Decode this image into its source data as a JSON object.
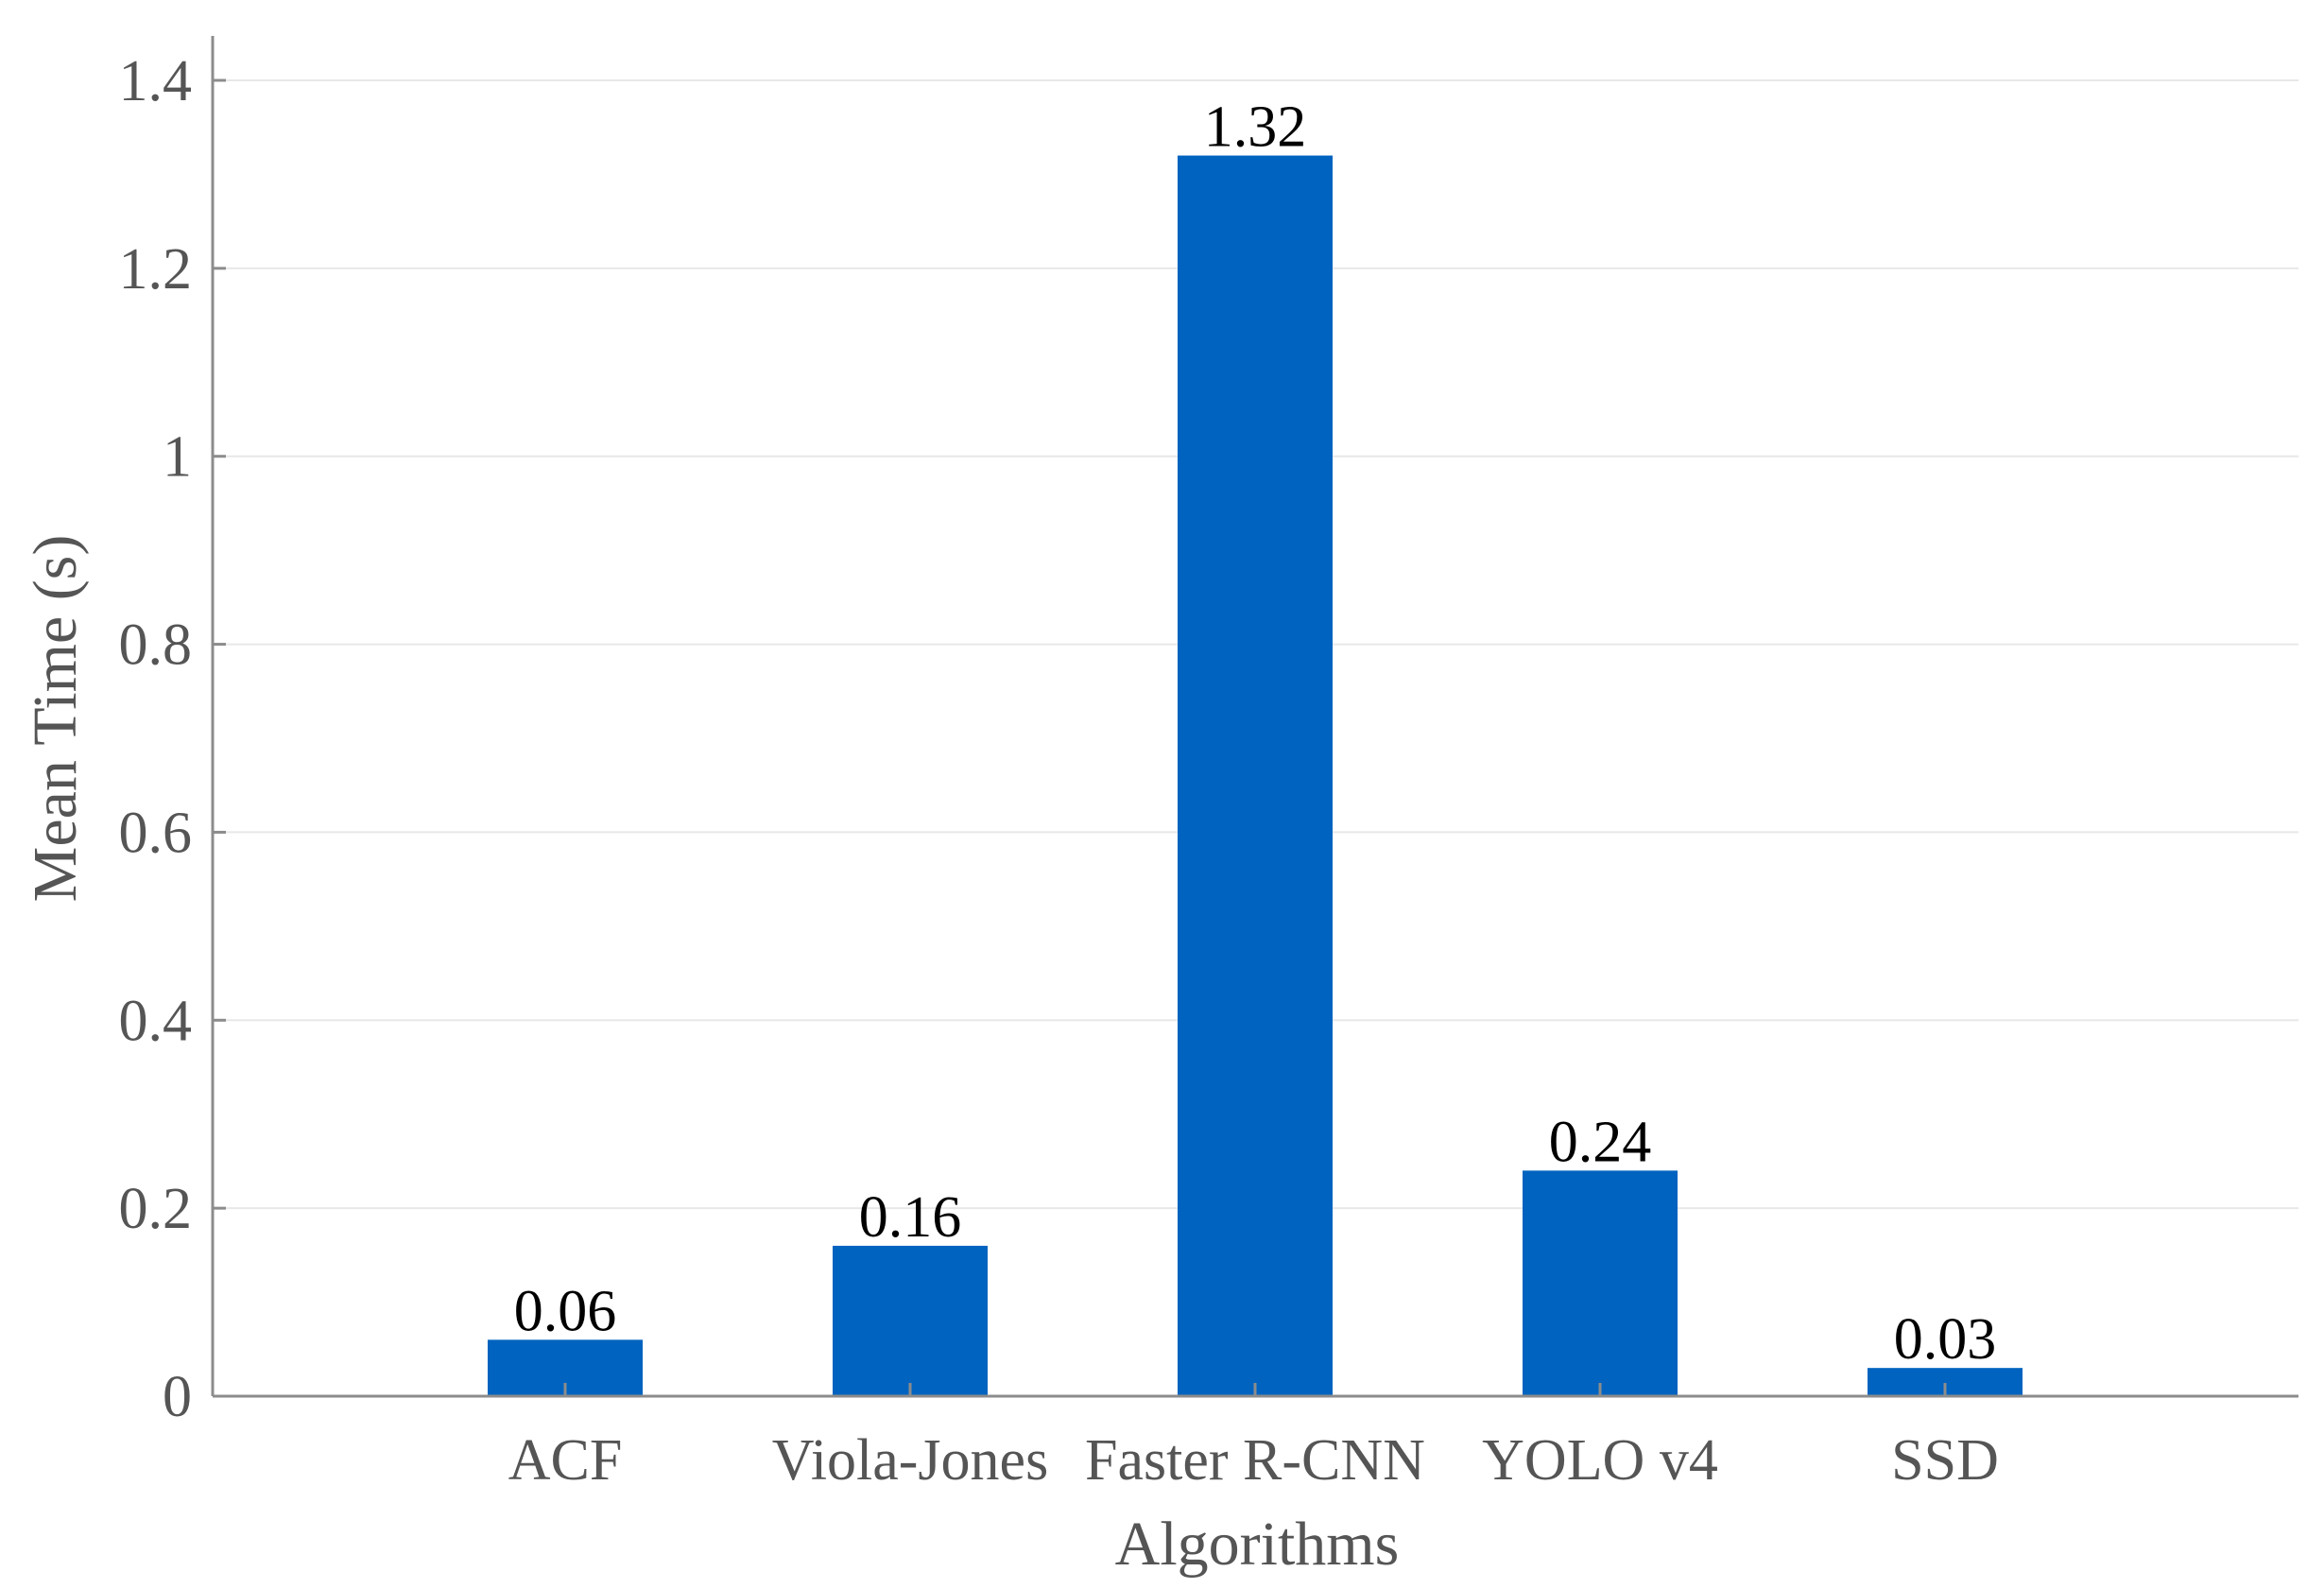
{
  "chart_data": {
    "type": "bar",
    "title": "",
    "xlabel": "Algorithms",
    "ylabel": "Mean Time (s)",
    "categories": [
      "ACF",
      "Viola-Jones",
      "Faster R-CNN",
      "YOLO v4",
      "SSD"
    ],
    "values": [
      0.06,
      0.16,
      1.32,
      0.24,
      0.03
    ],
    "data_labels": [
      "0.06",
      "0.16",
      "1.32",
      "0.24",
      "0.03"
    ],
    "ylim": [
      0,
      1.4
    ],
    "yticks": [
      0,
      0.2,
      0.4,
      0.6,
      0.8,
      1,
      1.2,
      1.4
    ],
    "ytick_labels": [
      "0",
      "0.2",
      "0.4",
      "0.6",
      "0.8",
      "1",
      "1.2",
      "1.4"
    ],
    "grid": true,
    "legend": "none",
    "bar_color": "#0063BF"
  }
}
